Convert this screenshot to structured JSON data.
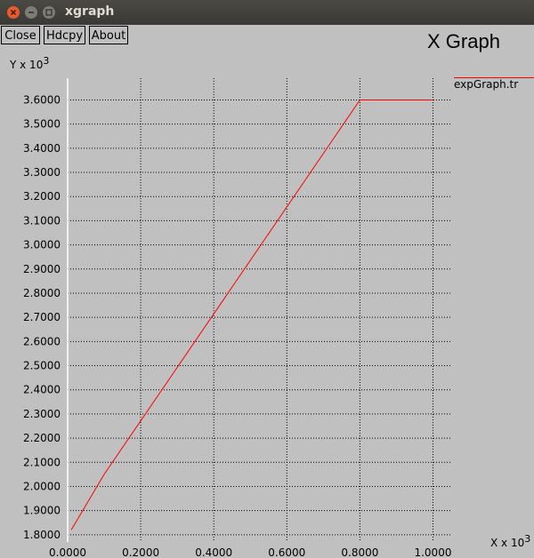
{
  "window": {
    "title": "xgraph",
    "controls": [
      {
        "name": "close-window-button",
        "icon": "close-icon",
        "color": "#e85a2c"
      },
      {
        "name": "minimize-window-button",
        "icon": "minimize-icon",
        "color": "#7d7c77"
      },
      {
        "name": "maximize-window-button",
        "icon": "maximize-icon",
        "color": "#7d7c77"
      }
    ]
  },
  "toolbar": {
    "close_label": "Close",
    "hdcpy_label": "Hdcpy",
    "about_label": "About"
  },
  "chart_data": {
    "type": "line",
    "title": "X Graph",
    "xlabel": "X x 10",
    "xlabel_exp": "3",
    "ylabel": "Y x 10",
    "ylabel_exp": "3",
    "xlim": [
      0.0,
      1.05
    ],
    "ylim": [
      1.77,
      3.69
    ],
    "x_ticks": [
      0.0,
      0.2,
      0.4,
      0.6,
      0.8,
      1.0
    ],
    "x_tick_labels": [
      "0.0000",
      "0.2000",
      "0.4000",
      "0.6000",
      "0.8000",
      "1.0000"
    ],
    "y_ticks": [
      1.8,
      1.9,
      2.0,
      2.1,
      2.2,
      2.3,
      2.4,
      2.5,
      2.6,
      2.7,
      2.8,
      2.9,
      3.0,
      3.1,
      3.2,
      3.3,
      3.4,
      3.5,
      3.6
    ],
    "y_tick_labels": [
      "1.8000",
      "1.9000",
      "2.0000",
      "2.1000",
      "2.2000",
      "2.3000",
      "2.4000",
      "2.5000",
      "2.6000",
      "2.7000",
      "2.8000",
      "2.9000",
      "3.0000",
      "3.1000",
      "3.2000",
      "3.3000",
      "3.4000",
      "3.5000",
      "3.6000"
    ],
    "grid": true,
    "legend_position": "top-right",
    "series": [
      {
        "name": "expGraph.tr",
        "color": "#ff0000",
        "x": [
          0.01,
          0.1,
          0.8,
          1.0
        ],
        "y": [
          1.82,
          2.05,
          3.6,
          3.6
        ]
      }
    ]
  }
}
